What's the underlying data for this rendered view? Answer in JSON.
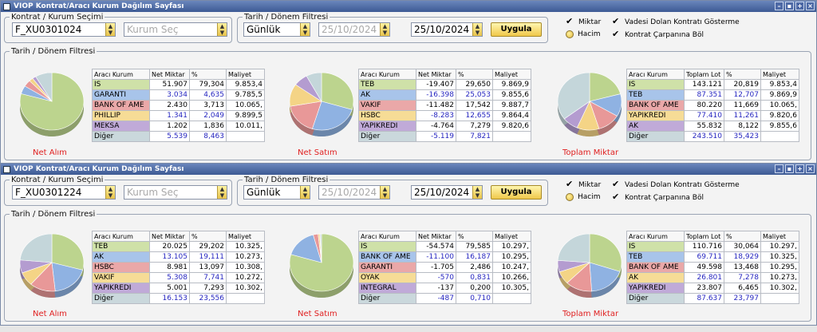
{
  "colors": {
    "green": "#bcd48e",
    "blue": "#8fb2e2",
    "red": "#e89898",
    "yellow": "#f4d486",
    "purple": "#b49cd0",
    "gray": "#c4d6da",
    "white": "#ffffff"
  },
  "windows": [
    {
      "title": "VIOP Kontrat/Aracı Kurum Dağılım Sayfası",
      "kontrat_group": "Kontrat / Kurum Seçimi",
      "kontrat_value": "F_XU0301024",
      "kurum_placeholder": "Kurum Seç",
      "tarih_group": "Tarih / Dönem Filtresi",
      "period": "Günlük",
      "date_from": "25/10/2024",
      "date_to": "25/10/2024",
      "apply_label": "Uygula",
      "opt_miktar": "Miktar",
      "opt_hacim": "Hacim",
      "opt_vade": "Vadesi Dolan Kontratı Gösterme",
      "opt_carpan": "Kontrat Çarpanına Böl",
      "lower_group": "Tarih / Dönem Filtresi",
      "panels": [
        {
          "label": "Net Alım",
          "headers": [
            "Aracı Kurum",
            "Net Miktar",
            "%",
            "Maliyet"
          ],
          "rows": [
            {
              "name": "IS",
              "net": "51.907",
              "pct": "79,304",
              "cost": "9.853,4",
              "color": "green",
              "blue": false
            },
            {
              "name": "GARANTI",
              "net": "3.034",
              "pct": "4,635",
              "cost": "9.785,5",
              "color": "blue",
              "blue": true
            },
            {
              "name": "BANK OF AME",
              "net": "2.430",
              "pct": "3,713",
              "cost": "10.065,",
              "color": "red",
              "blue": false
            },
            {
              "name": "PHILLIP",
              "net": "1.341",
              "pct": "2,049",
              "cost": "9.899,5",
              "color": "yellow",
              "blue": true
            },
            {
              "name": "MEKSA",
              "net": "1.202",
              "pct": "1,836",
              "cost": "10.011,",
              "color": "purple",
              "blue": false
            },
            {
              "name": "Diğer",
              "net": "5.539",
              "pct": "8,463",
              "cost": "",
              "color": "gray",
              "blue": true
            }
          ],
          "slices": [
            {
              "value": 79.304,
              "color": "green"
            },
            {
              "value": 4.635,
              "color": "blue"
            },
            {
              "value": 3.713,
              "color": "red"
            },
            {
              "value": 2.049,
              "color": "yellow"
            },
            {
              "value": 1.836,
              "color": "purple"
            },
            {
              "value": 8.463,
              "color": "gray"
            }
          ]
        },
        {
          "label": "Net Satım",
          "headers": [
            "Aracı Kurum",
            "Net Miktar",
            "%",
            "Maliyet"
          ],
          "rows": [
            {
              "name": "TEB",
              "net": "-19.407",
              "pct": "29,650",
              "cost": "9.869,9",
              "color": "green",
              "blue": false
            },
            {
              "name": "AK",
              "net": "-16.398",
              "pct": "25,053",
              "cost": "9.855,6",
              "color": "blue",
              "blue": true
            },
            {
              "name": "VAKIF",
              "net": "-11.482",
              "pct": "17,542",
              "cost": "9.887,7",
              "color": "red",
              "blue": false
            },
            {
              "name": "HSBC",
              "net": "-8.283",
              "pct": "12,655",
              "cost": "9.864,4",
              "color": "yellow",
              "blue": true
            },
            {
              "name": "YAPIKREDI",
              "net": "-4.764",
              "pct": "7,279",
              "cost": "9.820,6",
              "color": "purple",
              "blue": false
            },
            {
              "name": "Diğer",
              "net": "-5.119",
              "pct": "7,821",
              "cost": "",
              "color": "gray",
              "blue": true
            }
          ],
          "slices": [
            {
              "value": 29.65,
              "color": "green"
            },
            {
              "value": 25.053,
              "color": "blue"
            },
            {
              "value": 17.542,
              "color": "red"
            },
            {
              "value": 12.655,
              "color": "yellow"
            },
            {
              "value": 7.279,
              "color": "purple"
            },
            {
              "value": 7.821,
              "color": "gray"
            }
          ]
        },
        {
          "label": "Toplam Miktar",
          "headers": [
            "Aracı Kurum",
            "Toplam Lot",
            "%",
            "Maliyet"
          ],
          "rows": [
            {
              "name": "IS",
              "net": "143.121",
              "pct": "20,819",
              "cost": "9.853,4",
              "color": "green",
              "blue": false
            },
            {
              "name": "TEB",
              "net": "87.351",
              "pct": "12,707",
              "cost": "9.869,9",
              "color": "blue",
              "blue": true
            },
            {
              "name": "BANK OF AME",
              "net": "80.220",
              "pct": "11,669",
              "cost": "10.065,",
              "color": "red",
              "blue": false
            },
            {
              "name": "YAPIKREDI",
              "net": "77.410",
              "pct": "11,261",
              "cost": "9.820,6",
              "color": "yellow",
              "blue": true
            },
            {
              "name": "AK",
              "net": "55.832",
              "pct": "8,122",
              "cost": "9.855,6",
              "color": "purple",
              "blue": false
            },
            {
              "name": "Diğer",
              "net": "243.510",
              "pct": "35,423",
              "cost": "",
              "color": "gray",
              "blue": true
            }
          ],
          "slices": [
            {
              "value": 20.819,
              "color": "green"
            },
            {
              "value": 12.707,
              "color": "blue"
            },
            {
              "value": 11.669,
              "color": "red"
            },
            {
              "value": 11.261,
              "color": "yellow"
            },
            {
              "value": 8.122,
              "color": "purple"
            },
            {
              "value": 35.423,
              "color": "gray"
            }
          ]
        }
      ]
    },
    {
      "title": "VIOP Kontrat/Aracı Kurum Dağılım Sayfası",
      "kontrat_group": "Kontrat / Kurum Seçimi",
      "kontrat_value": "F_XU0301224",
      "kurum_placeholder": "Kurum Seç",
      "tarih_group": "Tarih / Dönem Filtresi",
      "period": "Günlük",
      "date_from": "25/10/2024",
      "date_to": "25/10/2024",
      "apply_label": "Uygula",
      "opt_miktar": "Miktar",
      "opt_hacim": "Hacim",
      "opt_vade": "Vadesi Dolan Kontratı Gösterme",
      "opt_carpan": "Kontrat Çarpanına Böl",
      "lower_group": "Tarih / Dönem Filtresi",
      "panels": [
        {
          "label": "Net Alım",
          "headers": [
            "Aracı Kurum",
            "Net Miktar",
            "%",
            "Maliyet"
          ],
          "rows": [
            {
              "name": "TEB",
              "net": "20.025",
              "pct": "29,202",
              "cost": "10.325,",
              "color": "green",
              "blue": false
            },
            {
              "name": "AK",
              "net": "13.105",
              "pct": "19,111",
              "cost": "10.273,",
              "color": "blue",
              "blue": true
            },
            {
              "name": "HSBC",
              "net": "8.981",
              "pct": "13,097",
              "cost": "10.308,",
              "color": "red",
              "blue": false
            },
            {
              "name": "VAKIF",
              "net": "5.308",
              "pct": "7,741",
              "cost": "10.272,",
              "color": "yellow",
              "blue": true
            },
            {
              "name": "YAPIKREDI",
              "net": "5.001",
              "pct": "7,293",
              "cost": "10.302,",
              "color": "purple",
              "blue": false
            },
            {
              "name": "Diğer",
              "net": "16.153",
              "pct": "23,556",
              "cost": "",
              "color": "gray",
              "blue": true
            }
          ],
          "slices": [
            {
              "value": 29.202,
              "color": "green"
            },
            {
              "value": 19.111,
              "color": "blue"
            },
            {
              "value": 13.097,
              "color": "red"
            },
            {
              "value": 7.741,
              "color": "yellow"
            },
            {
              "value": 7.293,
              "color": "purple"
            },
            {
              "value": 23.556,
              "color": "gray"
            }
          ]
        },
        {
          "label": "Net Satım",
          "headers": [
            "Aracı Kurum",
            "Net Miktar",
            "%",
            "Maliyet"
          ],
          "rows": [
            {
              "name": "IS",
              "net": "-54.574",
              "pct": "79,585",
              "cost": "10.297,",
              "color": "green",
              "blue": false
            },
            {
              "name": "BANK OF AME",
              "net": "-11.100",
              "pct": "16,187",
              "cost": "10.295,",
              "color": "blue",
              "blue": true
            },
            {
              "name": "GARANTI",
              "net": "-1.705",
              "pct": "2,486",
              "cost": "10.247,",
              "color": "red",
              "blue": false
            },
            {
              "name": "OYAK",
              "net": "-570",
              "pct": "0,831",
              "cost": "10.266,",
              "color": "yellow",
              "blue": true
            },
            {
              "name": "INTEGRAL",
              "net": "-137",
              "pct": "0,200",
              "cost": "10.305,",
              "color": "purple",
              "blue": false
            },
            {
              "name": "Diğer",
              "net": "-487",
              "pct": "0,710",
              "cost": "",
              "color": "gray",
              "blue": true
            }
          ],
          "slices": [
            {
              "value": 79.585,
              "color": "green"
            },
            {
              "value": 16.187,
              "color": "blue"
            },
            {
              "value": 2.486,
              "color": "red"
            },
            {
              "value": 0.831,
              "color": "yellow"
            },
            {
              "value": 0.2,
              "color": "purple"
            },
            {
              "value": 0.71,
              "color": "gray"
            }
          ]
        },
        {
          "label": "Toplam Miktar",
          "headers": [
            "Aracı Kurum",
            "Toplam Lot",
            "%",
            "Maliyet"
          ],
          "rows": [
            {
              "name": "IS",
              "net": "110.716",
              "pct": "30,064",
              "cost": "10.297,",
              "color": "green",
              "blue": false
            },
            {
              "name": "TEB",
              "net": "69.711",
              "pct": "18,929",
              "cost": "10.325,",
              "color": "blue",
              "blue": true
            },
            {
              "name": "BANK OF AME",
              "net": "49.598",
              "pct": "13,468",
              "cost": "10.295,",
              "color": "red",
              "blue": false
            },
            {
              "name": "AK",
              "net": "26.801",
              "pct": "7,278",
              "cost": "10.273,",
              "color": "yellow",
              "blue": true
            },
            {
              "name": "YAPIKREDI",
              "net": "23.807",
              "pct": "6,465",
              "cost": "10.302,",
              "color": "purple",
              "blue": false
            },
            {
              "name": "Diğer",
              "net": "87.637",
              "pct": "23,797",
              "cost": "",
              "color": "gray",
              "blue": true
            }
          ],
          "slices": [
            {
              "value": 30.064,
              "color": "green"
            },
            {
              "value": 18.929,
              "color": "blue"
            },
            {
              "value": 13.468,
              "color": "red"
            },
            {
              "value": 7.278,
              "color": "yellow"
            },
            {
              "value": 6.465,
              "color": "purple"
            },
            {
              "value": 23.797,
              "color": "gray"
            }
          ]
        }
      ]
    }
  ]
}
